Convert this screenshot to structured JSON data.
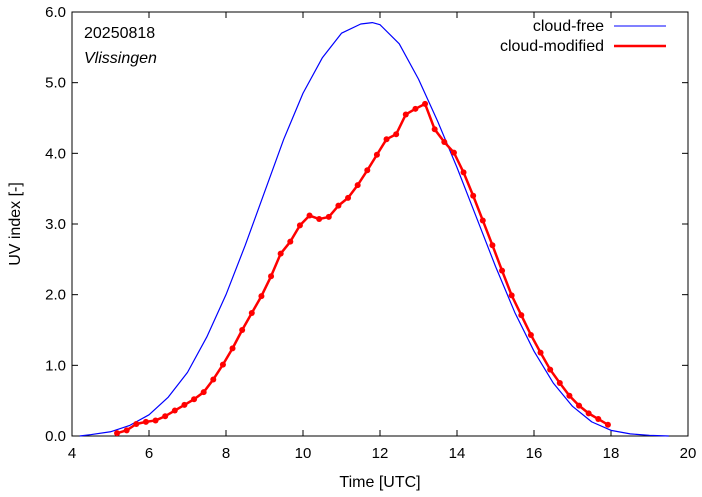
{
  "chart_data": {
    "type": "line",
    "title": "",
    "xlabel": "Time  [UTC]",
    "ylabel": "UV index  [-]",
    "xlim": [
      4,
      20
    ],
    "ylim": [
      0,
      6
    ],
    "x_ticks": [
      "4",
      "6",
      "8",
      "10",
      "12",
      "14",
      "16",
      "18",
      "20"
    ],
    "y_ticks": [
      "0.0",
      "1.0",
      "2.0",
      "3.0",
      "4.0",
      "5.0",
      "6.0"
    ],
    "grid": false,
    "legend_position": "top-right",
    "annotations": {
      "date": "20250818",
      "location": "Vlissingen"
    },
    "series": [
      {
        "name": "cloud-free",
        "color": "#0000ff",
        "markers": false,
        "x": [
          4.2,
          4.5,
          5.0,
          5.5,
          6.0,
          6.5,
          7.0,
          7.5,
          8.0,
          8.5,
          9.0,
          9.5,
          10.0,
          10.5,
          11.0,
          11.5,
          11.8,
          12.0,
          12.5,
          13.0,
          13.5,
          14.0,
          14.5,
          15.0,
          15.5,
          16.0,
          16.5,
          17.0,
          17.5,
          18.0,
          18.5,
          19.0,
          19.5
        ],
        "y": [
          0.0,
          0.02,
          0.06,
          0.15,
          0.3,
          0.55,
          0.9,
          1.4,
          2.0,
          2.7,
          3.45,
          4.2,
          4.85,
          5.35,
          5.7,
          5.83,
          5.85,
          5.82,
          5.55,
          5.05,
          4.45,
          3.8,
          3.1,
          2.4,
          1.75,
          1.2,
          0.75,
          0.42,
          0.2,
          0.08,
          0.03,
          0.01,
          0.0
        ]
      },
      {
        "name": "cloud-modified",
        "color": "#ff0000",
        "markers": true,
        "x": [
          5.17,
          5.42,
          5.67,
          5.92,
          6.17,
          6.42,
          6.67,
          6.92,
          7.17,
          7.42,
          7.67,
          7.92,
          8.17,
          8.42,
          8.67,
          8.92,
          9.17,
          9.42,
          9.67,
          9.92,
          10.17,
          10.42,
          10.67,
          10.92,
          11.17,
          11.42,
          11.67,
          11.92,
          12.17,
          12.42,
          12.67,
          12.92,
          13.17,
          13.42,
          13.67,
          13.92,
          14.17,
          14.42,
          14.67,
          14.92,
          15.17,
          15.42,
          15.67,
          15.92,
          16.17,
          16.42,
          16.67,
          16.92,
          17.17,
          17.42,
          17.67,
          17.92
        ],
        "y": [
          0.04,
          0.08,
          0.17,
          0.2,
          0.22,
          0.28,
          0.36,
          0.44,
          0.52,
          0.62,
          0.8,
          1.01,
          1.24,
          1.5,
          1.74,
          1.98,
          2.26,
          2.58,
          2.75,
          2.98,
          3.12,
          3.07,
          3.1,
          3.26,
          3.37,
          3.55,
          3.76,
          3.98,
          4.2,
          4.27,
          4.55,
          4.63,
          4.7,
          4.34,
          4.16,
          4.01,
          3.73,
          3.4,
          3.05,
          2.7,
          2.34,
          1.99,
          1.71,
          1.43,
          1.18,
          0.94,
          0.75,
          0.57,
          0.43,
          0.32,
          0.24,
          0.16
        ]
      }
    ]
  }
}
